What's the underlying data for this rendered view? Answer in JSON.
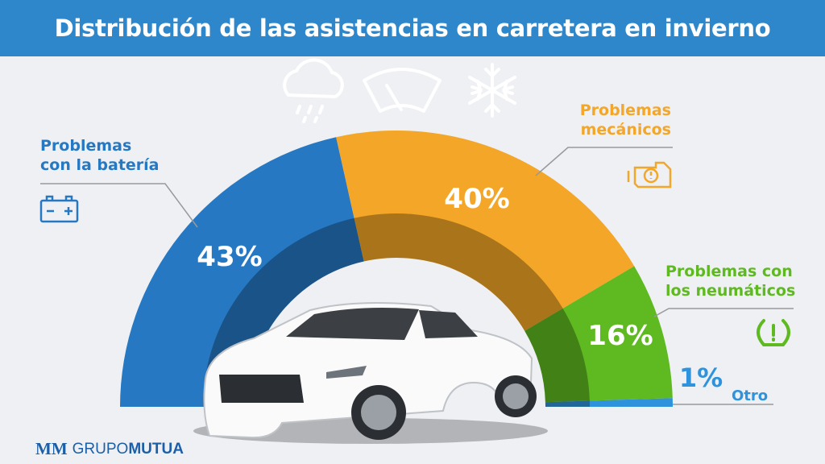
{
  "title": "Distribución de las asistencias en carretera en invierno",
  "chart_data": {
    "type": "pie",
    "variant": "half-donut",
    "categories": [
      "Problemas con la batería",
      "Problemas mecánicos",
      "Problemas con los neumáticos",
      "Otro"
    ],
    "values": [
      43,
      40,
      16,
      1
    ],
    "value_labels": [
      "43%",
      "40%",
      "16%",
      "1%"
    ],
    "colors": [
      "#2678c2",
      "#f4a628",
      "#5fb920",
      "#2e93dc"
    ],
    "label_lines": [
      [
        "Problemas",
        "con la batería"
      ],
      [
        "Problemas",
        "mecánicos"
      ],
      [
        "Problemas con",
        "los neumáticos"
      ],
      [
        "Otro"
      ]
    ],
    "icons": [
      "battery-icon",
      "engine-warning-icon",
      "tire-pressure-icon",
      ""
    ]
  },
  "header_icons": [
    "rain-cloud-icon",
    "windshield-wiper-icon",
    "snowflake-icon"
  ],
  "logo": {
    "prefix": "MM",
    "text_light": "GRUPO",
    "text_bold": "MUTUA"
  }
}
